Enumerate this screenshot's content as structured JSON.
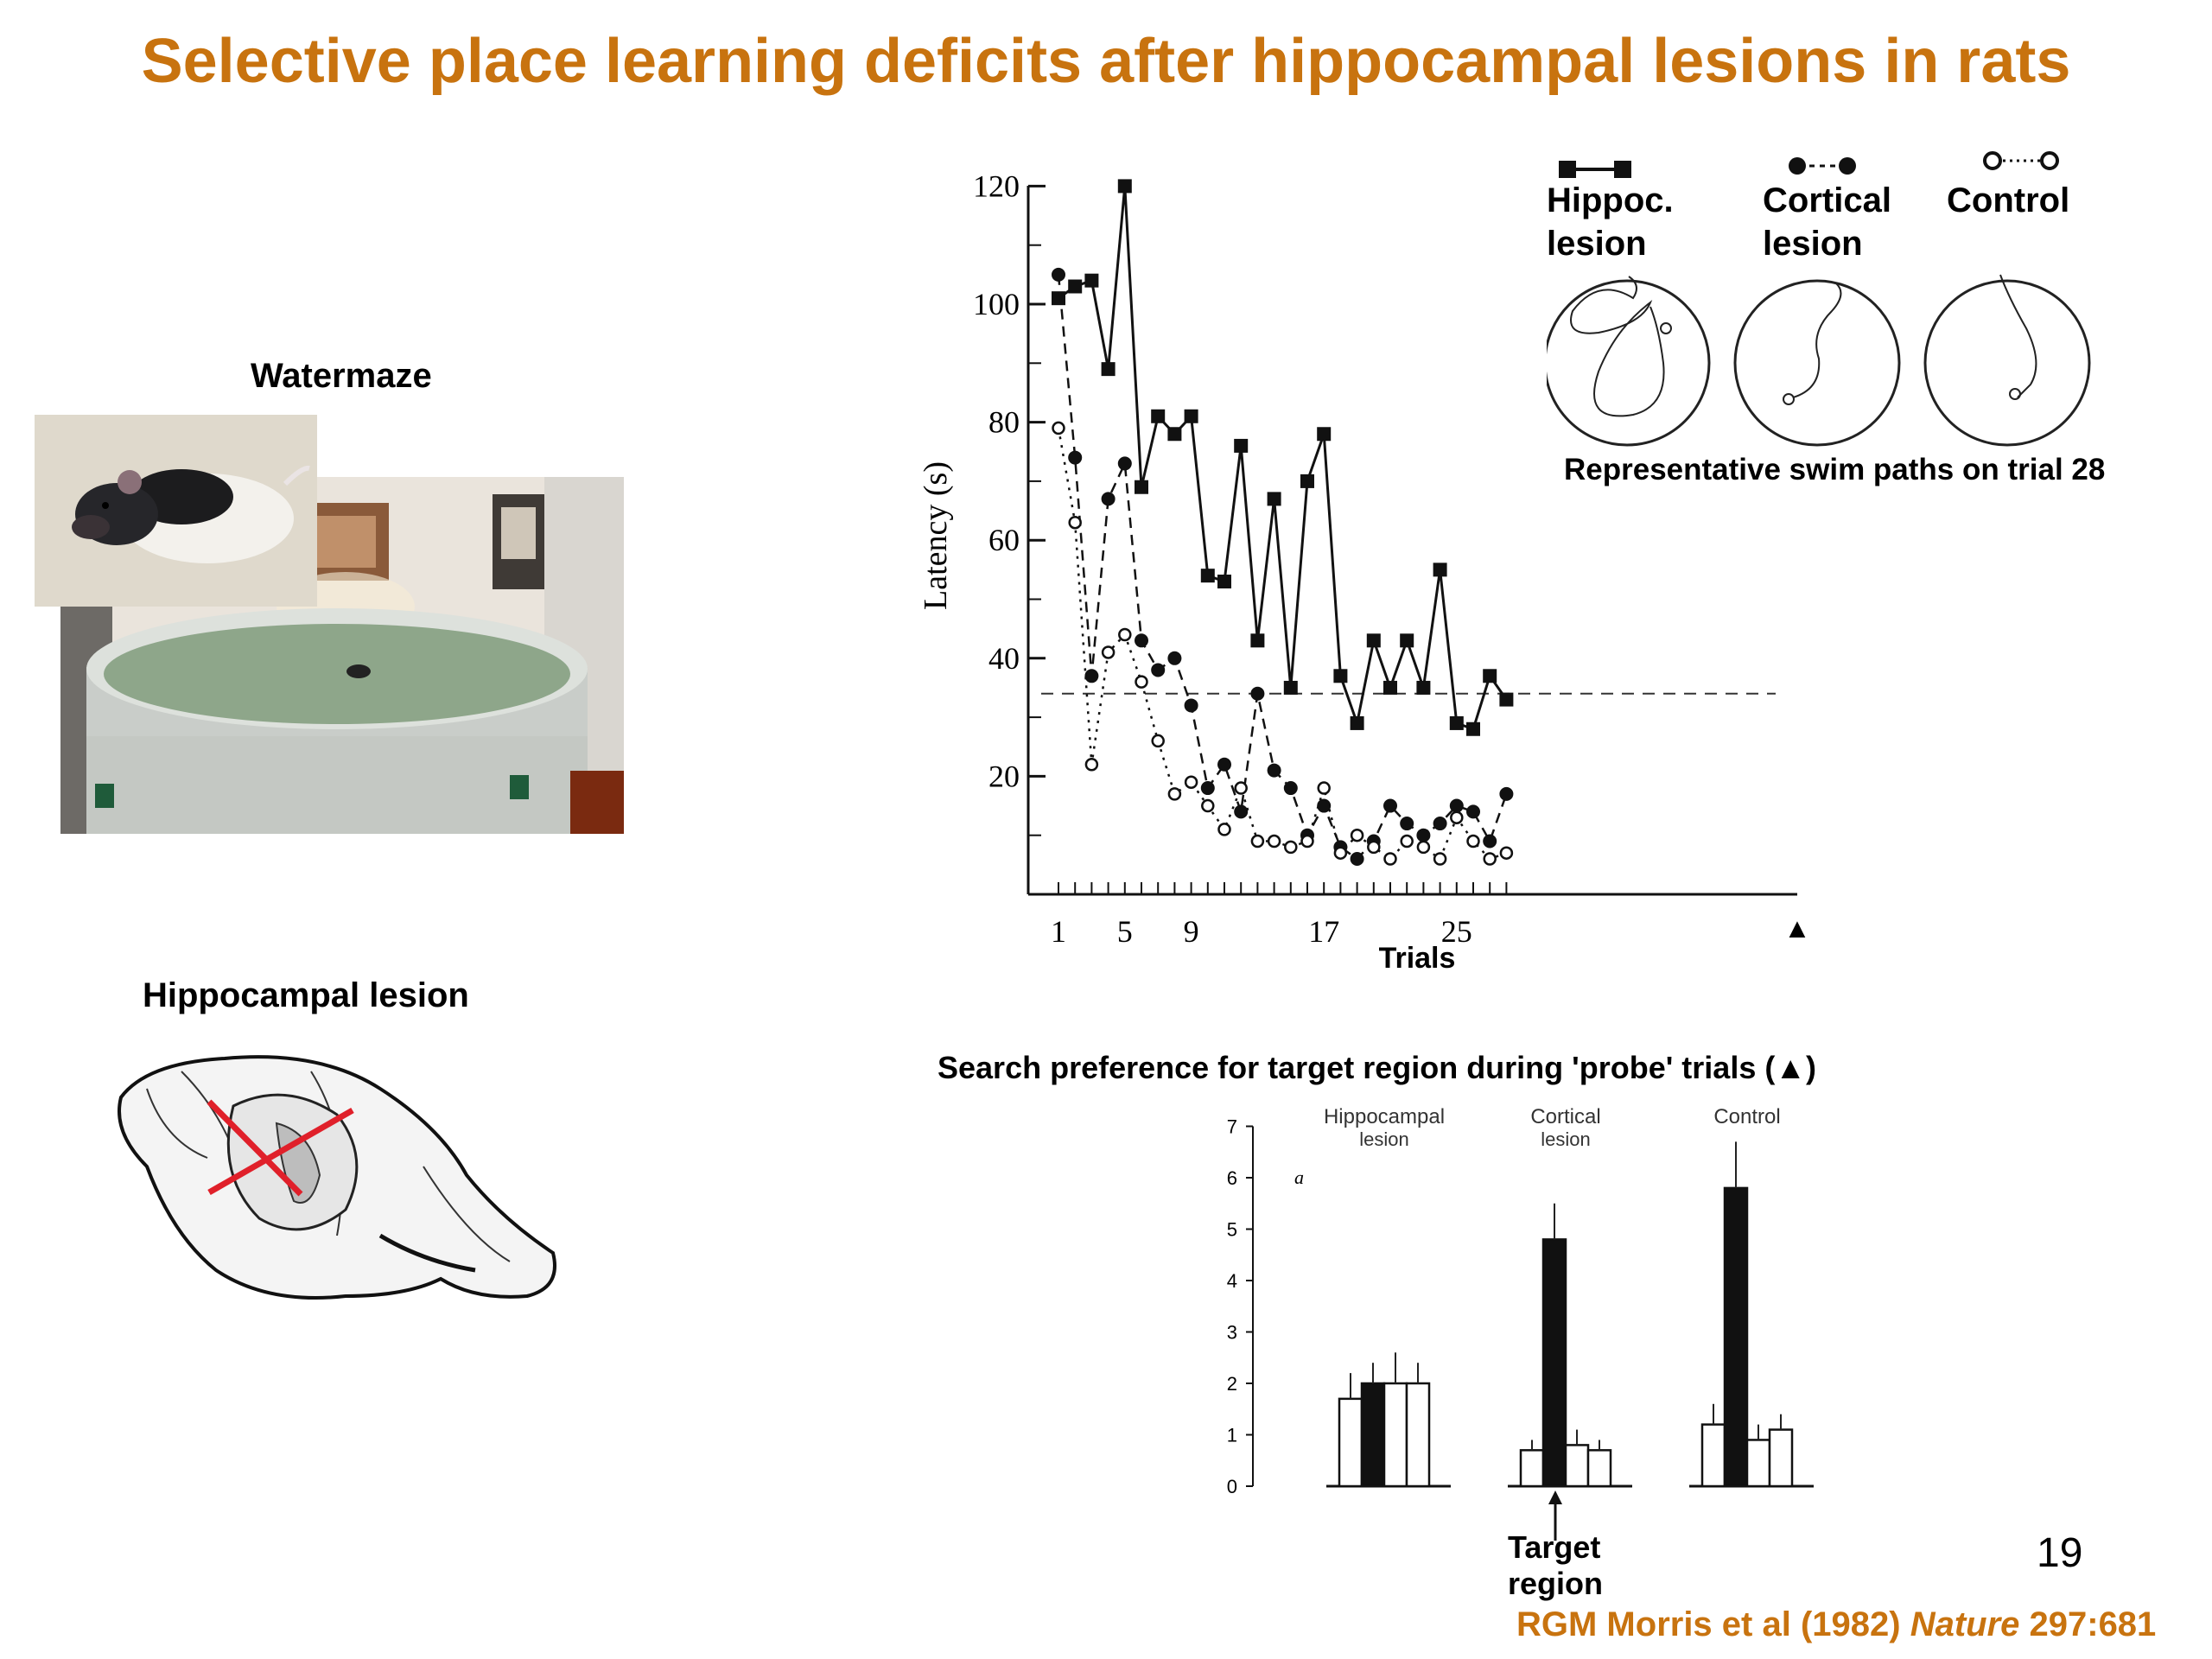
{
  "slide": {
    "title": "Selective place learning deficits after hippocampal lesions in rats",
    "watermaze_label": "Watermaze",
    "lesion_label": "Hippocampal lesion",
    "page_number": "19",
    "citation_prefix": "RGM Morris et al (1982) ",
    "citation_journal": "Nature",
    "citation_suffix": " 297:681"
  },
  "legend": {
    "hippoc_line1": "Hippoc.",
    "hippoc_line2": "lesion",
    "cortical_line1": "Cortical",
    "cortical_line2": "lesion",
    "control": "Control",
    "swim_caption": "Representative swim paths on trial 28"
  },
  "probe": {
    "heading": "Search preference for target region during  'probe' trials (▲)",
    "target_line1": "Target",
    "target_line2": "region",
    "marker_a": "a"
  },
  "colors": {
    "title": "#c8730f",
    "cross": "#e0202a",
    "ink": "#111111"
  },
  "chart_data": [
    {
      "type": "line",
      "title": "",
      "xlabel": "Trials",
      "ylabel": "Latency (s)",
      "xlim": [
        1,
        28
      ],
      "ylim": [
        0,
        120
      ],
      "xticks": [
        "1",
        "5",
        "9",
        "17",
        "25"
      ],
      "yticks": [
        "20",
        "40",
        "60",
        "80",
        "100",
        "120"
      ],
      "probe_marker": "▲",
      "reference_line_y": 34,
      "x": [
        1,
        2,
        3,
        4,
        5,
        6,
        7,
        8,
        9,
        10,
        11,
        12,
        13,
        14,
        15,
        16,
        17,
        18,
        19,
        20,
        21,
        22,
        23,
        24,
        25,
        26,
        27,
        28
      ],
      "series": [
        {
          "name": "Hippoc. lesion",
          "marker": "square",
          "style": "solid",
          "values": [
            101,
            103,
            104,
            89,
            120,
            69,
            81,
            78,
            81,
            54,
            53,
            76,
            43,
            67,
            35,
            70,
            78,
            37,
            29,
            43,
            35,
            43,
            35,
            55,
            29,
            28,
            37,
            33
          ]
        },
        {
          "name": "Cortical lesion",
          "marker": "filled-circle",
          "style": "dash",
          "values": [
            105,
            74,
            37,
            67,
            73,
            43,
            38,
            40,
            32,
            18,
            22,
            14,
            34,
            21,
            18,
            10,
            15,
            8,
            6,
            9,
            15,
            12,
            10,
            12,
            15,
            14,
            9,
            17
          ]
        },
        {
          "name": "Control",
          "marker": "open-circle",
          "style": "dot",
          "values": [
            79,
            63,
            22,
            41,
            44,
            36,
            26,
            17,
            19,
            15,
            11,
            18,
            9,
            9,
            8,
            9,
            18,
            7,
            10,
            8,
            6,
            9,
            8,
            6,
            13,
            9,
            6,
            7
          ]
        }
      ]
    },
    {
      "type": "bar",
      "title": "",
      "ylim": [
        0,
        7
      ],
      "yticks": [
        "0",
        "1",
        "2",
        "3",
        "4",
        "5",
        "6",
        "7"
      ],
      "groups": [
        {
          "label_line1": "Hippocampal",
          "label_line2": "lesion",
          "values": [
            1.7,
            2.0,
            2.0,
            2.0
          ],
          "errors": [
            0.5,
            0.4,
            0.6,
            0.4
          ]
        },
        {
          "label_line1": "Cortical",
          "label_line2": "lesion",
          "values": [
            0.7,
            4.8,
            0.8,
            0.7
          ],
          "errors": [
            0.2,
            0.7,
            0.3,
            0.2
          ]
        },
        {
          "label_line1": "Control",
          "label_line2": "",
          "values": [
            1.2,
            5.8,
            0.9,
            1.1
          ],
          "errors": [
            0.4,
            0.9,
            0.3,
            0.3
          ]
        }
      ],
      "target_index": 1
    }
  ]
}
